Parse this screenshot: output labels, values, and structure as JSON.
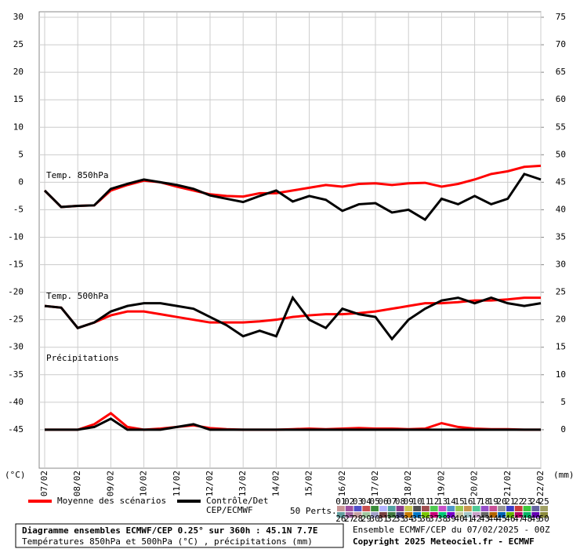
{
  "chart_data": {
    "type": "line",
    "categories": [
      "07/02",
      null,
      "08/02",
      null,
      "09/02",
      null,
      "10/02",
      null,
      "11/02",
      null,
      "12/02",
      null,
      "13/02",
      null,
      "14/02",
      null,
      "15/02",
      null,
      "16/02",
      null,
      "17/02",
      null,
      "18/02",
      null,
      "19/02",
      null,
      "20/02",
      null,
      "21/02",
      null,
      "22/02"
    ],
    "ylim": [
      -52,
      31
    ],
    "yticks": [
      30,
      25,
      20,
      15,
      10,
      5,
      0,
      -5,
      -10,
      -15,
      -20,
      -25,
      -30,
      -35,
      -40,
      -45
    ],
    "y2lim": [
      -7,
      76
    ],
    "y2ticks": [
      75,
      70,
      65,
      60,
      55,
      50,
      45,
      40,
      35,
      30,
      25,
      20,
      15,
      10,
      5,
      0
    ],
    "ylabel": "(°C)",
    "y2label": "(mm)",
    "grid": true,
    "panel_labels": [
      "Temp. 850hPa",
      "Temp. 500hPa",
      "Précipitations"
    ],
    "series": [
      {
        "name": [
          "Moyenne des scénarios"
        ],
        "color": "#ff0000",
        "t850": [
          -1.5,
          -4.5,
          -4.3,
          -4.2,
          -1.5,
          -0.5,
          0.3,
          0,
          -0.8,
          -1.5,
          -2.2,
          -2.5,
          -2.6,
          -2,
          -2,
          -1.5,
          -1,
          -0.5,
          -0.8,
          -0.3,
          -0.2,
          -0.5,
          -0.2,
          -0.1,
          -0.8,
          -0.3,
          0.5,
          1.5,
          2,
          2.8,
          3
        ],
        "t500": [
          -22.5,
          -22.8,
          -26.5,
          -25.5,
          -24.2,
          -23.5,
          -23.5,
          -24,
          -24.5,
          -25,
          -25.5,
          -25.5,
          -25.5,
          -25.3,
          -25,
          -24.5,
          -24.2,
          -24,
          -24,
          -23.8,
          -23.5,
          -23,
          -22.5,
          -22,
          -22,
          -21.8,
          -21.5,
          -21.5,
          -21.3,
          -21,
          -21
        ],
        "precip": [
          0,
          0,
          0,
          1,
          3,
          0.5,
          0,
          0.2,
          0.5,
          0.8,
          0.3,
          0.1,
          0,
          0,
          0,
          0.1,
          0.2,
          0.1,
          0.2,
          0.3,
          0.2,
          0.2,
          0.1,
          0.2,
          1.2,
          0.5,
          0.2,
          0.1,
          0.1,
          0,
          0
        ]
      },
      {
        "name": [
          "Contrôle/Det",
          "CEP/ECMWF"
        ],
        "color": "#000000",
        "t850": [
          -1.5,
          -4.5,
          -4.3,
          -4.2,
          -1.2,
          -0.3,
          0.5,
          0,
          -0.5,
          -1.2,
          -2.4,
          -3,
          -3.6,
          -2.5,
          -1.5,
          -3.5,
          -2.5,
          -3.2,
          -5.2,
          -4,
          -3.8,
          -5.5,
          -5,
          -6.8,
          -3,
          -4,
          -2.5,
          -4,
          -3,
          1.5,
          0.5
        ],
        "t500": [
          -22.5,
          -22.8,
          -26.5,
          -25.5,
          -23.5,
          -22.5,
          -22,
          -22,
          -22.5,
          -23,
          -24.5,
          -26,
          -28,
          -27,
          -28,
          -21,
          -25,
          -26.5,
          -23,
          -24,
          -24.5,
          -28.5,
          -25,
          -23,
          -21.5,
          -21,
          -22,
          -21,
          -22,
          -22.5,
          -22
        ],
        "precip": [
          0,
          0,
          0,
          0.5,
          2,
          0,
          0,
          0,
          0.5,
          1,
          0,
          0,
          0,
          0,
          0,
          0,
          0,
          0,
          0,
          0,
          0,
          0,
          0,
          0,
          0,
          0,
          0,
          0,
          0,
          0,
          0
        ]
      }
    ],
    "perturbations": {
      "label": "50 Perts.",
      "names": [
        "01",
        "02",
        "03",
        "04",
        "05",
        "06",
        "07",
        "08",
        "09",
        "10",
        "11",
        "12",
        "13",
        "14",
        "15",
        "16",
        "17",
        "18",
        "19",
        "20",
        "21",
        "22",
        "23",
        "24",
        "25",
        "26",
        "27",
        "28",
        "29",
        "30",
        "31",
        "32",
        "33",
        "34",
        "35",
        "36",
        "37",
        "38",
        "39",
        "40",
        "41",
        "42",
        "43",
        "44",
        "45",
        "46",
        "47",
        "48",
        "49",
        "50"
      ],
      "colors": [
        "#c89696",
        "#a050a0",
        "#5050c8",
        "#c85050",
        "#3c8c3c",
        "#b4b4ff",
        "#50a0a0",
        "#8c3c8c",
        "#c8c850",
        "#505050",
        "#a05050",
        "#50c850",
        "#c850c8",
        "#5096c8",
        "#96c850",
        "#c89650",
        "#50c896",
        "#9650c8",
        "#c85096",
        "#969696",
        "#3c3cc8",
        "#c83c3c",
        "#3cc83c",
        "#6464a0",
        "#a0a064",
        "#64a0a0",
        "#a064a0",
        "#c8a0a0",
        "#a0c8a0",
        "#a0a0c8",
        "#784040",
        "#407840",
        "#404078",
        "#c87800",
        "#0078c8",
        "#78c800",
        "#c80078",
        "#00c878",
        "#7800c8",
        "#c8c8a0",
        "#a0c8c8",
        "#c8a0c8",
        "#646464",
        "#b46400",
        "#0064b4",
        "#64b400",
        "#b40064",
        "#00b464",
        "#6400b4",
        "#8c8c3c"
      ]
    },
    "footer": {
      "title": "Diagramme ensembles ECMWF/CEP 0.25° sur 360h : 45.1N 7.7E",
      "subtitle": "Températures 850hPa et 500hPa (°C) , précipitations (mm)",
      "run": "Ensemble ECMWF/CEP du 07/02/2025 - 00Z",
      "copyright": "Copyright 2025 Meteociel.fr - ECMWF"
    }
  }
}
